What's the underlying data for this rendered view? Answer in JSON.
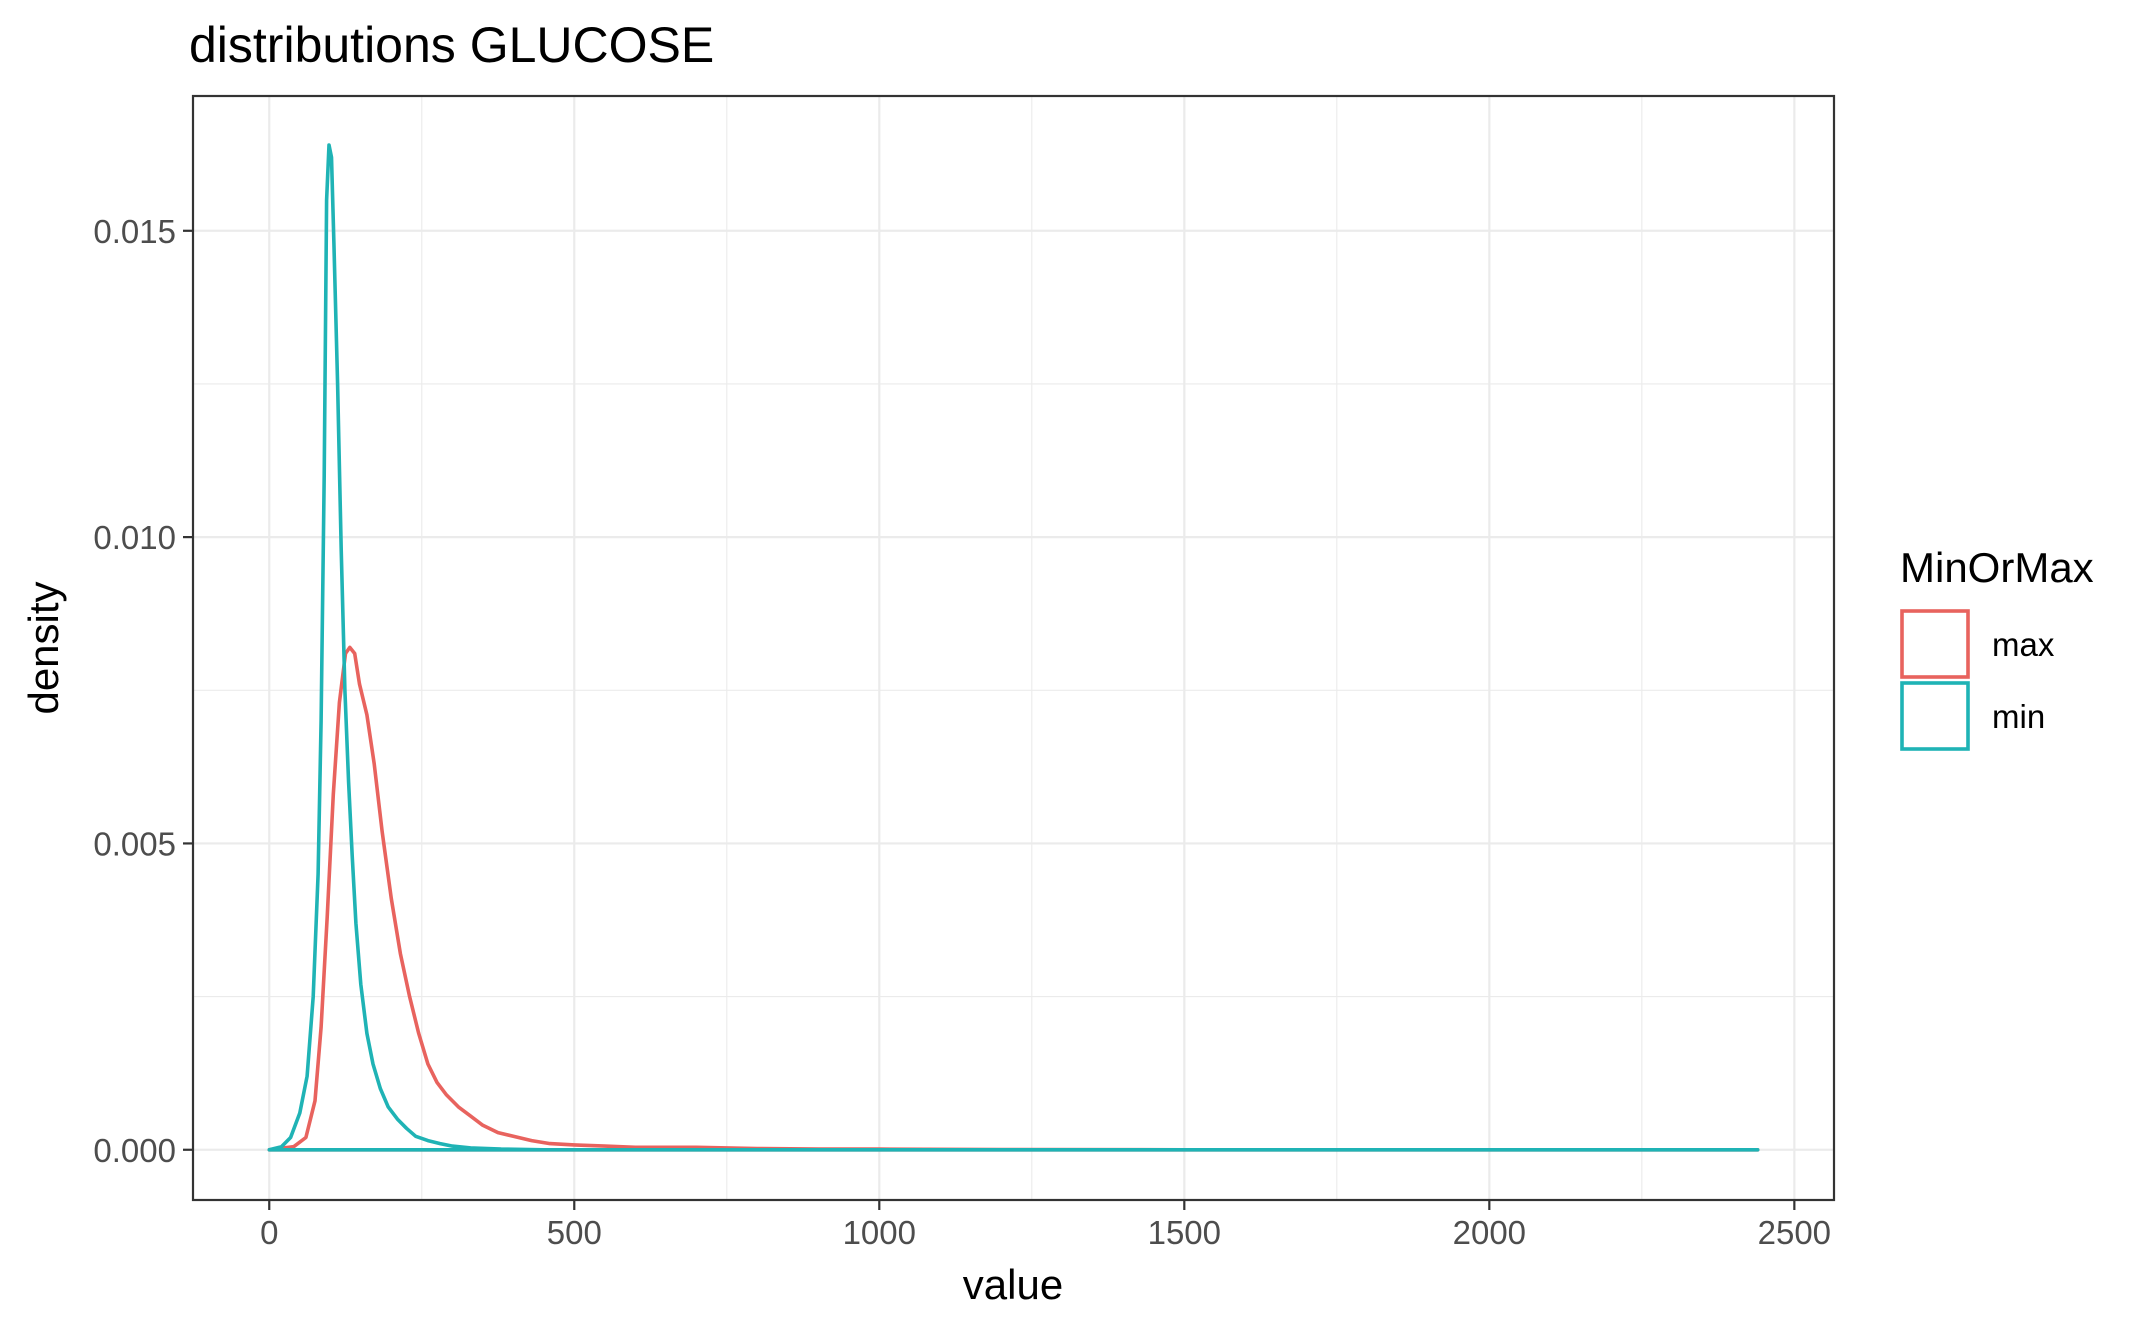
{
  "chart_data": {
    "type": "line",
    "title": "distributions GLUCOSE",
    "xlabel": "value",
    "ylabel": "density",
    "xlim": [
      -125,
      2565
    ],
    "ylim": [
      -0.00082,
      0.0172
    ],
    "x_ticks": [
      0,
      500,
      1000,
      1500,
      2000,
      2500
    ],
    "x_tick_labels": [
      "0",
      "500",
      "1000",
      "1500",
      "2000",
      "2500"
    ],
    "y_ticks": [
      0,
      0.005,
      0.01,
      0.015
    ],
    "y_tick_labels": [
      "0.000",
      "0.005",
      "0.010",
      "0.015"
    ],
    "x_minor_ticks": [
      250,
      750,
      1250,
      1750,
      2250
    ],
    "y_minor_ticks": [
      0.0025,
      0.0075,
      0.0125
    ],
    "grid": true,
    "legend": {
      "title": "MinOrMax",
      "position": "right",
      "entries": [
        {
          "label": "max",
          "color": "#F8766D"
        },
        {
          "label": "min",
          "color": "#00BFC4"
        }
      ]
    },
    "series": [
      {
        "name": "max",
        "color": "#E8635E",
        "points": [
          [
            0,
            0
          ],
          [
            40,
            5e-05
          ],
          [
            60,
            0.0002
          ],
          [
            75,
            0.0008
          ],
          [
            85,
            0.002
          ],
          [
            95,
            0.0038
          ],
          [
            105,
            0.0058
          ],
          [
            115,
            0.0073
          ],
          [
            125,
            0.0081
          ],
          [
            132,
            0.0082
          ],
          [
            140,
            0.0081
          ],
          [
            148,
            0.0076
          ],
          [
            160,
            0.0071
          ],
          [
            172,
            0.0063
          ],
          [
            185,
            0.0052
          ],
          [
            200,
            0.0041
          ],
          [
            215,
            0.0032
          ],
          [
            230,
            0.0025
          ],
          [
            245,
            0.0019
          ],
          [
            260,
            0.0014
          ],
          [
            275,
            0.0011
          ],
          [
            290,
            0.0009
          ],
          [
            310,
            0.0007
          ],
          [
            330,
            0.00055
          ],
          [
            350,
            0.0004
          ],
          [
            375,
            0.00028
          ],
          [
            400,
            0.00022
          ],
          [
            430,
            0.00015
          ],
          [
            460,
            0.0001
          ],
          [
            500,
            8e-05
          ],
          [
            550,
            6e-05
          ],
          [
            600,
            4e-05
          ],
          [
            700,
            4e-05
          ],
          [
            800,
            2e-05
          ],
          [
            900,
            1e-05
          ],
          [
            1000,
            1e-05
          ],
          [
            1200,
            5e-06
          ],
          [
            1500,
            0
          ],
          [
            2000,
            0
          ],
          [
            2440,
            0
          ]
        ]
      },
      {
        "name": "min",
        "color": "#1FB3B5",
        "points": [
          [
            0,
            0
          ],
          [
            20,
            5e-05
          ],
          [
            35,
            0.0002
          ],
          [
            50,
            0.0006
          ],
          [
            62,
            0.0012
          ],
          [
            72,
            0.0025
          ],
          [
            80,
            0.0045
          ],
          [
            85,
            0.007
          ],
          [
            90,
            0.011
          ],
          [
            94,
            0.0155
          ],
          [
            98,
            0.0164
          ],
          [
            102,
            0.0162
          ],
          [
            106,
            0.0148
          ],
          [
            112,
            0.0125
          ],
          [
            118,
            0.0098
          ],
          [
            124,
            0.0075
          ],
          [
            130,
            0.006
          ],
          [
            136,
            0.0048
          ],
          [
            142,
            0.0037
          ],
          [
            150,
            0.0027
          ],
          [
            160,
            0.0019
          ],
          [
            170,
            0.0014
          ],
          [
            182,
            0.001
          ],
          [
            195,
            0.0007
          ],
          [
            210,
            0.0005
          ],
          [
            225,
            0.00035
          ],
          [
            240,
            0.00022
          ],
          [
            260,
            0.00015
          ],
          [
            280,
            0.0001
          ],
          [
            300,
            6e-05
          ],
          [
            330,
            3e-05
          ],
          [
            380,
            1e-05
          ],
          [
            450,
            0
          ],
          [
            1000,
            0
          ],
          [
            2440,
            0
          ]
        ]
      }
    ]
  }
}
